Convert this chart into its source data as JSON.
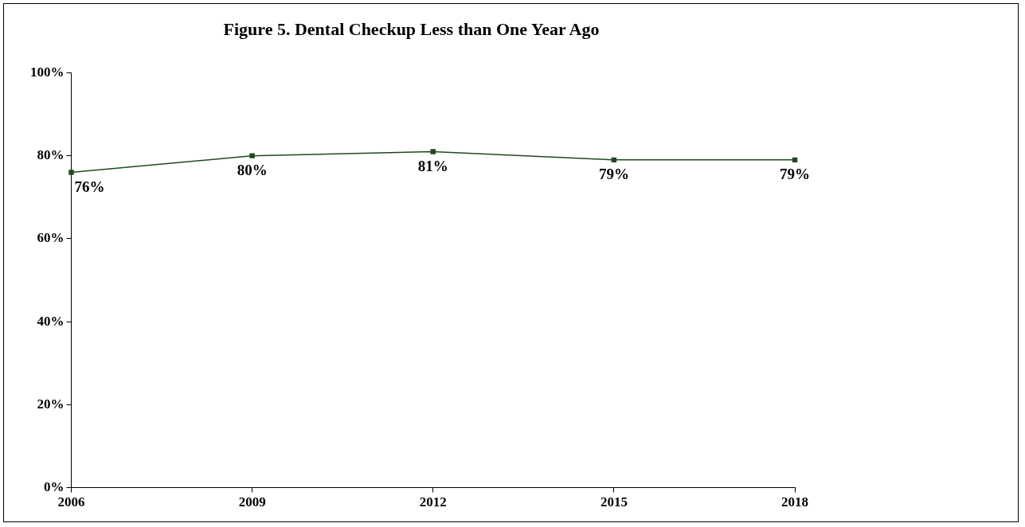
{
  "chart_data": {
    "type": "line",
    "title": "Figure 5. Dental Checkup Less than One Year Ago",
    "categories": [
      "2006",
      "2009",
      "2012",
      "2015",
      "2018"
    ],
    "series": [
      {
        "color": "#1f4a1f",
        "values": [
          76,
          80,
          81,
          79,
          79
        ],
        "value_labels": [
          "76%",
          "80%",
          "81%",
          "79%",
          "79%"
        ]
      }
    ],
    "ylim": [
      0,
      100
    ],
    "yticks": [
      {
        "value": 0,
        "label": "0%"
      },
      {
        "value": 20,
        "label": "20%"
      },
      {
        "value": 40,
        "label": "40%"
      },
      {
        "value": 60,
        "label": "60%"
      },
      {
        "value": 80,
        "label": "80%"
      },
      {
        "value": 100,
        "label": "100%"
      }
    ],
    "grid": false,
    "legend": false,
    "marker": "square",
    "line_style": "solid"
  }
}
